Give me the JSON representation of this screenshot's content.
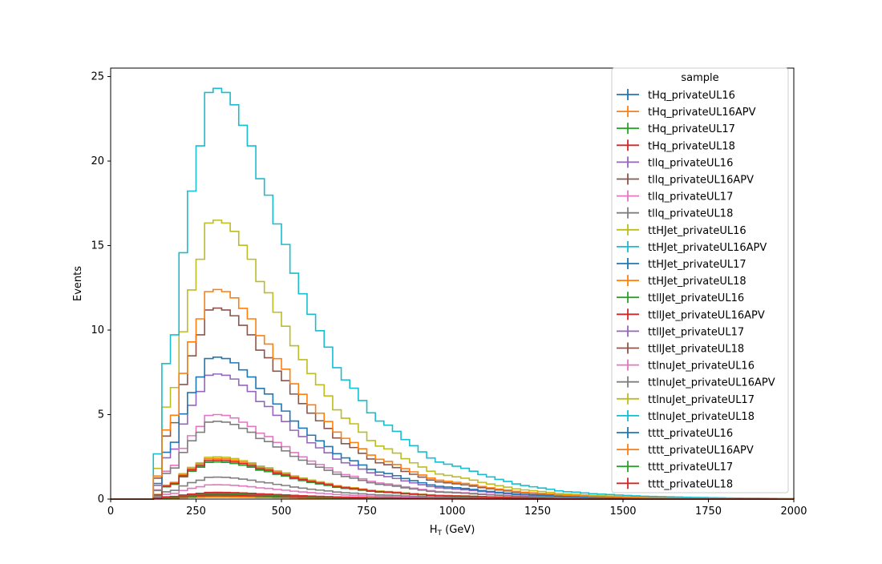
{
  "chart_data": {
    "type": "line",
    "title": "",
    "xlabel": "H",
    "xlabel_sub": "T",
    "xlabel_unit": "(GeV)",
    "ylabel": "Events",
    "xlim": [
      0,
      2000
    ],
    "ylim": [
      0,
      25.5
    ],
    "xticks": [
      "0",
      "250",
      "500",
      "750",
      "1000",
      "1250",
      "1500",
      "1750",
      "2000"
    ],
    "yticks": [
      "0",
      "5",
      "10",
      "15",
      "20",
      "25"
    ],
    "grid": false,
    "legend_title": "sample",
    "legend_location": "top-right",
    "bin_edges": [
      125,
      150,
      175,
      200,
      225,
      250,
      275,
      300,
      325,
      350,
      375,
      400,
      425,
      450,
      475,
      500,
      525,
      550,
      575,
      600,
      625,
      650,
      675,
      700,
      725,
      750,
      775,
      800,
      825,
      850,
      875,
      900,
      925,
      950,
      975,
      1000,
      1025,
      1050,
      1075,
      1100,
      1125,
      1150,
      1175,
      1200,
      1225,
      1250,
      1275,
      1300,
      1325,
      1350,
      1375,
      1400,
      1425,
      1450,
      1475,
      1500,
      1525,
      1550,
      1575,
      1600,
      1625,
      1650,
      1675,
      1700,
      1725,
      1750,
      1775,
      1800,
      1825,
      1850,
      1875,
      1900,
      1925,
      1950,
      1975,
      2000
    ],
    "series": [
      {
        "name": "tHq_privateUL16",
        "color": "#1f77b4",
        "peak": 0.15
      },
      {
        "name": "tHq_privateUL16APV",
        "color": "#ff7f0e",
        "peak": 0.12
      },
      {
        "name": "tHq_privateUL17",
        "color": "#2ca02c",
        "peak": 0.2
      },
      {
        "name": "tHq_privateUL18",
        "color": "#d62728",
        "peak": 0.25
      },
      {
        "name": "tllq_privateUL16",
        "color": "#9467bd",
        "peak": 0.35
      },
      {
        "name": "tllq_privateUL16APV",
        "color": "#8c564b",
        "peak": 0.3
      },
      {
        "name": "tllq_privateUL17",
        "color": "#e377c2",
        "peak": 0.85
      },
      {
        "name": "tllq_privateUL18",
        "color": "#7f7f7f",
        "peak": 1.3
      },
      {
        "name": "ttHJet_privateUL16",
        "color": "#bcbd22",
        "peak": 2.5
      },
      {
        "name": "ttHJet_privateUL16APV",
        "color": "#17becf",
        "peak": 2.4
      },
      {
        "name": "ttHJet_privateUL17",
        "color": "#1f77b4",
        "peak": 2.2
      },
      {
        "name": "ttHJet_privateUL18",
        "color": "#ff7f0e",
        "peak": 2.4
      },
      {
        "name": "ttllJet_privateUL16",
        "color": "#2ca02c",
        "peak": 2.2
      },
      {
        "name": "ttllJet_privateUL16APV",
        "color": "#d62728",
        "peak": 2.3
      },
      {
        "name": "ttllJet_privateUL17",
        "color": "#9467bd",
        "peak": 7.4
      },
      {
        "name": "ttllJet_privateUL18",
        "color": "#8c564b",
        "peak": 11.3
      },
      {
        "name": "ttlnuJet_privateUL16",
        "color": "#e377c2",
        "peak": 5.0
      },
      {
        "name": "ttlnuJet_privateUL16APV",
        "color": "#7f7f7f",
        "peak": 4.6
      },
      {
        "name": "ttlnuJet_privateUL17",
        "color": "#bcbd22",
        "peak": 16.5
      },
      {
        "name": "ttlnuJet_privateUL18",
        "color": "#17becf",
        "peak": 24.3
      },
      {
        "name": "tttt_privateUL16",
        "color": "#1f77b4",
        "peak": 8.4
      },
      {
        "name": "tttt_privateUL16APV",
        "color": "#ff7f0e",
        "peak": 12.4
      },
      {
        "name": "tttt_privateUL17",
        "color": "#2ca02c",
        "peak": 0.35
      },
      {
        "name": "tttt_privateUL18",
        "color": "#d62728",
        "peak": 0.4
      }
    ],
    "shape": [
      0.11,
      0.33,
      0.4,
      0.6,
      0.75,
      0.86,
      0.99,
      1.0,
      0.99,
      0.96,
      0.91,
      0.86,
      0.78,
      0.74,
      0.67,
      0.62,
      0.55,
      0.5,
      0.45,
      0.41,
      0.37,
      0.32,
      0.29,
      0.27,
      0.24,
      0.21,
      0.19,
      0.18,
      0.165,
      0.145,
      0.13,
      0.115,
      0.1,
      0.09,
      0.085,
      0.08,
      0.075,
      0.068,
      0.06,
      0.054,
      0.048,
      0.043,
      0.037,
      0.033,
      0.03,
      0.027,
      0.024,
      0.02,
      0.018,
      0.017,
      0.015,
      0.013,
      0.012,
      0.011,
      0.01,
      0.009,
      0.008,
      0.007,
      0.0065,
      0.006,
      0.0055,
      0.005,
      0.0045,
      0.004,
      0.0037,
      0.0034,
      0.003,
      0.0027,
      0.0024,
      0.0022,
      0.002,
      0.0018,
      0.0016,
      0.0014,
      0.0012
    ]
  }
}
